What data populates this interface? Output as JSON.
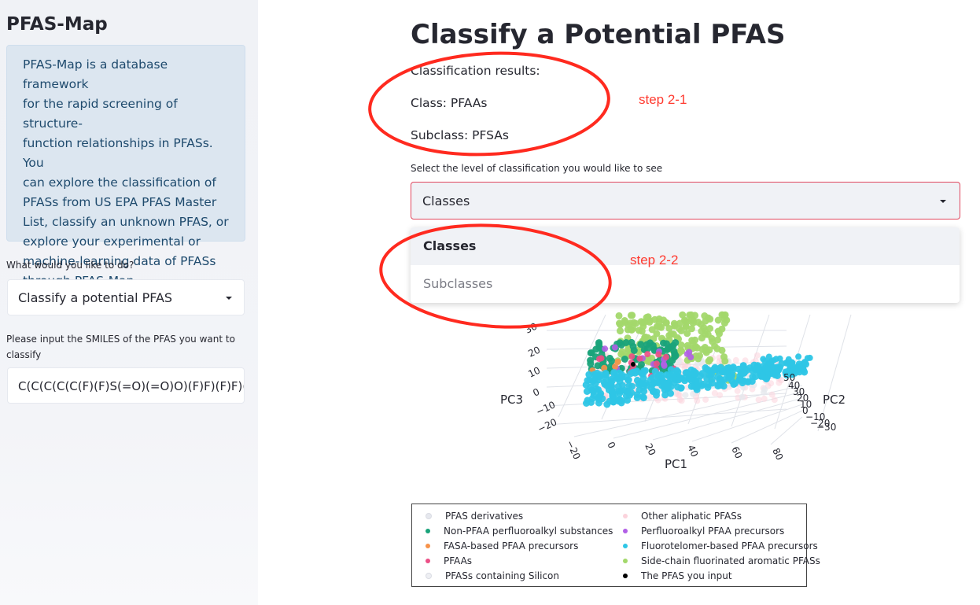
{
  "sidebar": {
    "title": "PFAS-Map",
    "info_lines": [
      "PFAS-Map is a database framework",
      "for the rapid screening of structure-",
      "function relationships in PFASs. You",
      "can explore the classification of",
      "PFASs from US EPA PFAS Master",
      "List, classify an unknown PFAS, or",
      "explore your experimental or",
      "machine-learning data of PFASs",
      "through PFAS-Map."
    ],
    "mode_label": "What would you like to do?",
    "mode_value": "Classify a potential PFAS",
    "smiles_label_lines": [
      "Please input the SMILES of the PFAS you want to",
      "classify"
    ],
    "smiles_value": "C(C(C(C(C(F)(F)S(=O)(=O)O)(F)F)(F)F)(F)F)(F)F"
  },
  "main": {
    "title": "Classify a Potential PFAS",
    "results_heading": "Classification results:",
    "class_line": "Class: PFAAs",
    "subclass_line": "Subclass: PFSAs",
    "level_label": "Select the level of classification you would like to see",
    "level_value": "Classes",
    "dropdown_options": [
      "Classes",
      "Subclasses"
    ]
  },
  "annotations": {
    "step1": "step 2-1",
    "step2": "step 2-2",
    "color": "#ff3b30"
  },
  "plot": {
    "axis_labels": {
      "x": "PC1",
      "y": "PC2",
      "z": "PC3"
    },
    "pc1_ticks": [
      "−20",
      "0",
      "20",
      "40",
      "60",
      "80"
    ],
    "pc2_ticks": [
      "50",
      "40",
      "30",
      "20",
      "10",
      "0",
      "−10",
      "−20",
      "−30"
    ],
    "pc3_ticks": [
      "30",
      "20",
      "10",
      "0",
      "−10",
      "−20"
    ]
  },
  "legend": {
    "items": [
      {
        "label": "PFAS derivatives",
        "color": "#e6e8ee"
      },
      {
        "label": "Other aliphatic PFASs",
        "color": "#fbd3dc"
      },
      {
        "label": "Non-PFAA perfluoroalkyl substances",
        "color": "#1aa37a"
      },
      {
        "label": "Perfluoroalkyl PFAA precursors",
        "color": "#b15fe6"
      },
      {
        "label": "FASA-based PFAA precursors",
        "color": "#f7924a"
      },
      {
        "label": "Fluorotelomer-based PFAA precursors",
        "color": "#2ec6e6"
      },
      {
        "label": "PFAAs",
        "color": "#ec4f86"
      },
      {
        "label": "Side-chain fluorinated aromatic PFASs",
        "color": "#a3d86b"
      },
      {
        "label": "PFASs containing Silicon",
        "color": "#eeeff3"
      },
      {
        "label": "The PFAS you input",
        "color": "#000000"
      }
    ]
  }
}
